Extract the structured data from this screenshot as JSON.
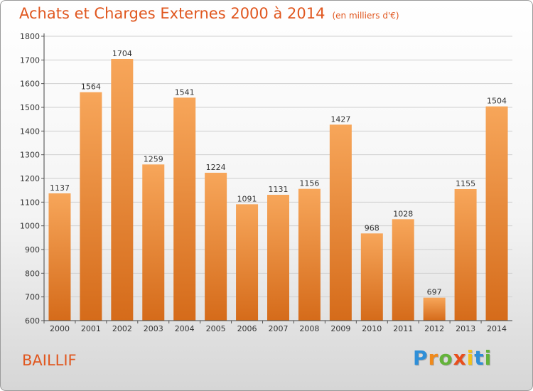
{
  "chart_data": {
    "type": "bar",
    "title": "Achats et Charges Externes 2000 à 2014",
    "subtitle": "(en milliers d'€)",
    "categories": [
      "2000",
      "2001",
      "2002",
      "2003",
      "2004",
      "2005",
      "2006",
      "2007",
      "2008",
      "2009",
      "2010",
      "2011",
      "2012",
      "2013",
      "2014"
    ],
    "values": [
      1137,
      1564,
      1704,
      1259,
      1541,
      1224,
      1091,
      1131,
      1156,
      1427,
      968,
      1028,
      697,
      1155,
      1504
    ],
    "ylim": [
      600,
      1800
    ],
    "yticks": [
      600,
      700,
      800,
      900,
      1000,
      1100,
      1200,
      1300,
      1400,
      1500,
      1600,
      1700,
      1800
    ],
    "grid": true,
    "bar_color_top": "#f7a65a",
    "bar_color_bottom": "#d56b1a"
  },
  "commune": "BAILLIF",
  "logo": {
    "letters": [
      "P",
      "r",
      "o",
      "x",
      "i",
      "t",
      "i"
    ],
    "colors": [
      "#2f8fd8",
      "#f08a1c",
      "#64b33a",
      "#e84e1b",
      "#f2c21a",
      "#2f8fd8",
      "#64b33a"
    ]
  }
}
